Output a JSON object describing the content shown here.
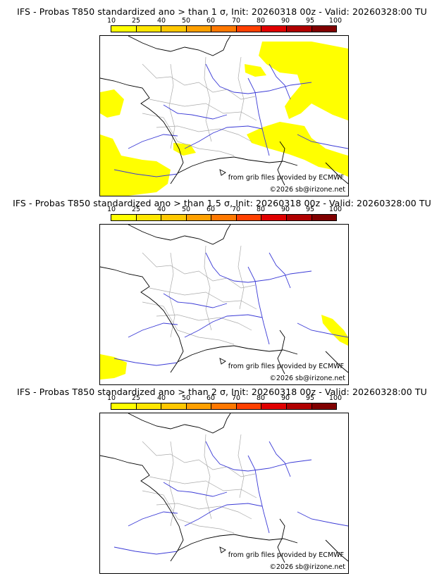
{
  "colorbar": {
    "ticks": [
      "10",
      "25",
      "40",
      "50",
      "60",
      "70",
      "80",
      "90",
      "95",
      "100"
    ],
    "colors": [
      "#ffff00",
      "#ffe600",
      "#ffc800",
      "#ffa000",
      "#ff7800",
      "#ff4000",
      "#e00000",
      "#b00000",
      "#800000"
    ]
  },
  "credits": {
    "grib": "from grib files provided by ECMWF",
    "copyright": "©2026 sb@irizone.net"
  },
  "panels": [
    {
      "title": "IFS - Probas T850  standardized ano > than 1 σ, Init: 20260318 00z - Valid: 20260328:00 TU",
      "threshold_sigma": 1
    },
    {
      "title": "IFS - Probas T850  standardized ano > than 1.5 σ, Init: 20260318 00z - Valid: 20260328:00 TU",
      "threshold_sigma": 1.5
    },
    {
      "title": "IFS - Probas T850  standardized ano > than 2 σ, Init: 20260318 00z - Valid: 20260328:00 TU",
      "threshold_sigma": 2
    }
  ],
  "map_colors": {
    "probability_fill": "#ffff00",
    "coast": "#000000",
    "rivers": "#3a3ad6",
    "borders": "#aaaaaa"
  }
}
